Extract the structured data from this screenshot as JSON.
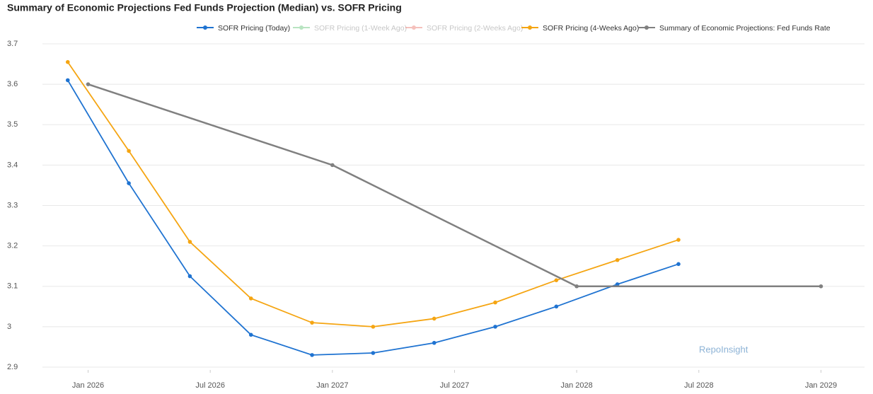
{
  "chart_data": {
    "type": "line",
    "title": "Summary of Economic Projections Fed Funds Projection (Median) vs. SOFR Pricing",
    "watermark": "RepoInsight",
    "xlim": [
      "2025-11",
      "2029-03"
    ],
    "xticks": [
      {
        "value": "2026-01",
        "label": "Jan 2026"
      },
      {
        "value": "2026-07",
        "label": "Jul 2026"
      },
      {
        "value": "2027-01",
        "label": "Jan 2027"
      },
      {
        "value": "2027-07",
        "label": "Jul 2027"
      },
      {
        "value": "2028-01",
        "label": "Jan 2028"
      },
      {
        "value": "2028-07",
        "label": "Jul 2028"
      },
      {
        "value": "2029-01",
        "label": "Jan 2029"
      }
    ],
    "ylim": [
      2.9,
      3.7
    ],
    "yticks": [
      2.9,
      3,
      3.1,
      3.2,
      3.3,
      3.4,
      3.5,
      3.6,
      3.7
    ],
    "grid": true,
    "series": [
      {
        "name": "SOFR Pricing (Today)",
        "color": "#1f73d1",
        "visible": true,
        "x": [
          "2025-12",
          "2026-03",
          "2026-06",
          "2026-09",
          "2026-12",
          "2027-03",
          "2027-06",
          "2027-09",
          "2027-12",
          "2028-03",
          "2028-06"
        ],
        "values": [
          3.61,
          3.355,
          3.125,
          2.98,
          2.93,
          2.935,
          2.96,
          3.0,
          3.05,
          3.105,
          3.155
        ]
      },
      {
        "name": "SOFR Pricing (1-Week Ago)",
        "color": "#7fcf8f",
        "visible": false,
        "x": [],
        "values": []
      },
      {
        "name": "SOFR Pricing (2-Weeks Ago)",
        "color": "#ee8f86",
        "visible": false,
        "x": [],
        "values": []
      },
      {
        "name": "SOFR Pricing (4-Weeks Ago)",
        "color": "#f5a512",
        "visible": true,
        "x": [
          "2025-12",
          "2026-03",
          "2026-06",
          "2026-09",
          "2026-12",
          "2027-03",
          "2027-06",
          "2027-09",
          "2027-12",
          "2028-03",
          "2028-06"
        ],
        "values": [
          3.655,
          3.435,
          3.21,
          3.07,
          3.01,
          3.0,
          3.02,
          3.06,
          3.115,
          3.165,
          3.215
        ]
      },
      {
        "name": "Summary of Economic Projections: Fed Funds Rate",
        "color": "#808080",
        "visible": true,
        "x": [
          "2026-01",
          "2027-01",
          "2028-01",
          "2029-01"
        ],
        "values": [
          3.6,
          3.4,
          3.1,
          3.1
        ]
      }
    ]
  }
}
